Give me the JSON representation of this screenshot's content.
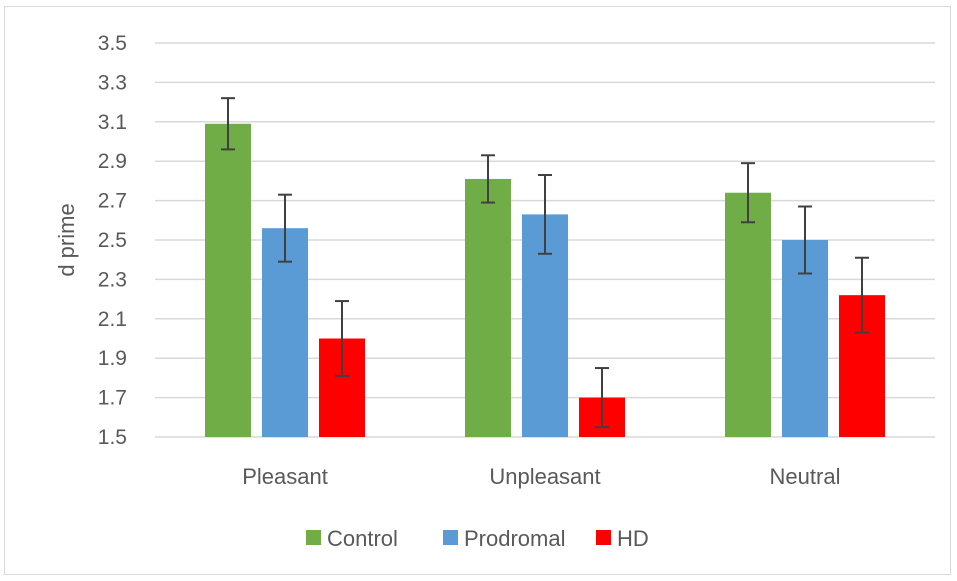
{
  "chart_data": {
    "type": "bar",
    "title": "",
    "xlabel": "",
    "ylabel": "d prime",
    "ylim": [
      1.5,
      3.5
    ],
    "yticks": [
      1.5,
      1.7,
      1.9,
      2.1,
      2.3,
      2.5,
      2.7,
      2.9,
      3.1,
      3.3,
      3.5
    ],
    "grid": true,
    "legend_position": "bottom",
    "categories": [
      "Pleasant",
      "Unpleasant",
      "Neutral"
    ],
    "series": [
      {
        "name": "Control",
        "color": "#70ad47",
        "values": [
          3.09,
          2.81,
          2.74
        ],
        "errors": [
          0.13,
          0.12,
          0.15
        ]
      },
      {
        "name": "Prodromal",
        "color": "#5b9bd5",
        "values": [
          2.56,
          2.63,
          2.5
        ],
        "errors": [
          0.17,
          0.2,
          0.17
        ]
      },
      {
        "name": "HD",
        "color": "#ff0000",
        "values": [
          2.0,
          1.7,
          2.22
        ],
        "errors": [
          0.19,
          0.15,
          0.19
        ]
      }
    ]
  }
}
